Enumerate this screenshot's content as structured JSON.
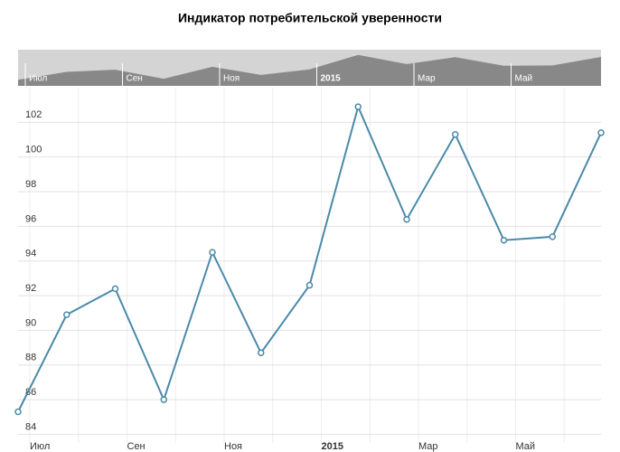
{
  "chart_data": {
    "type": "line",
    "title": "Индикатор потребительской уверенности",
    "categories": [
      "Июл",
      null,
      "Сен",
      null,
      "Ноя",
      null,
      "2015",
      null,
      "Мар",
      null,
      "Май",
      null,
      null
    ],
    "series": [
      {
        "name": "Индикатор",
        "color": "#4a8aa8",
        "values": [
          85.3,
          90.9,
          92.4,
          86.0,
          94.5,
          88.7,
          92.6,
          102.9,
          96.4,
          101.3,
          95.2,
          95.4,
          101.4
        ]
      }
    ],
    "ylim": [
      83.5,
      104
    ],
    "yticks": [
      84,
      86,
      88,
      90,
      92,
      94,
      96,
      98,
      100,
      102
    ],
    "grid": true
  }
}
